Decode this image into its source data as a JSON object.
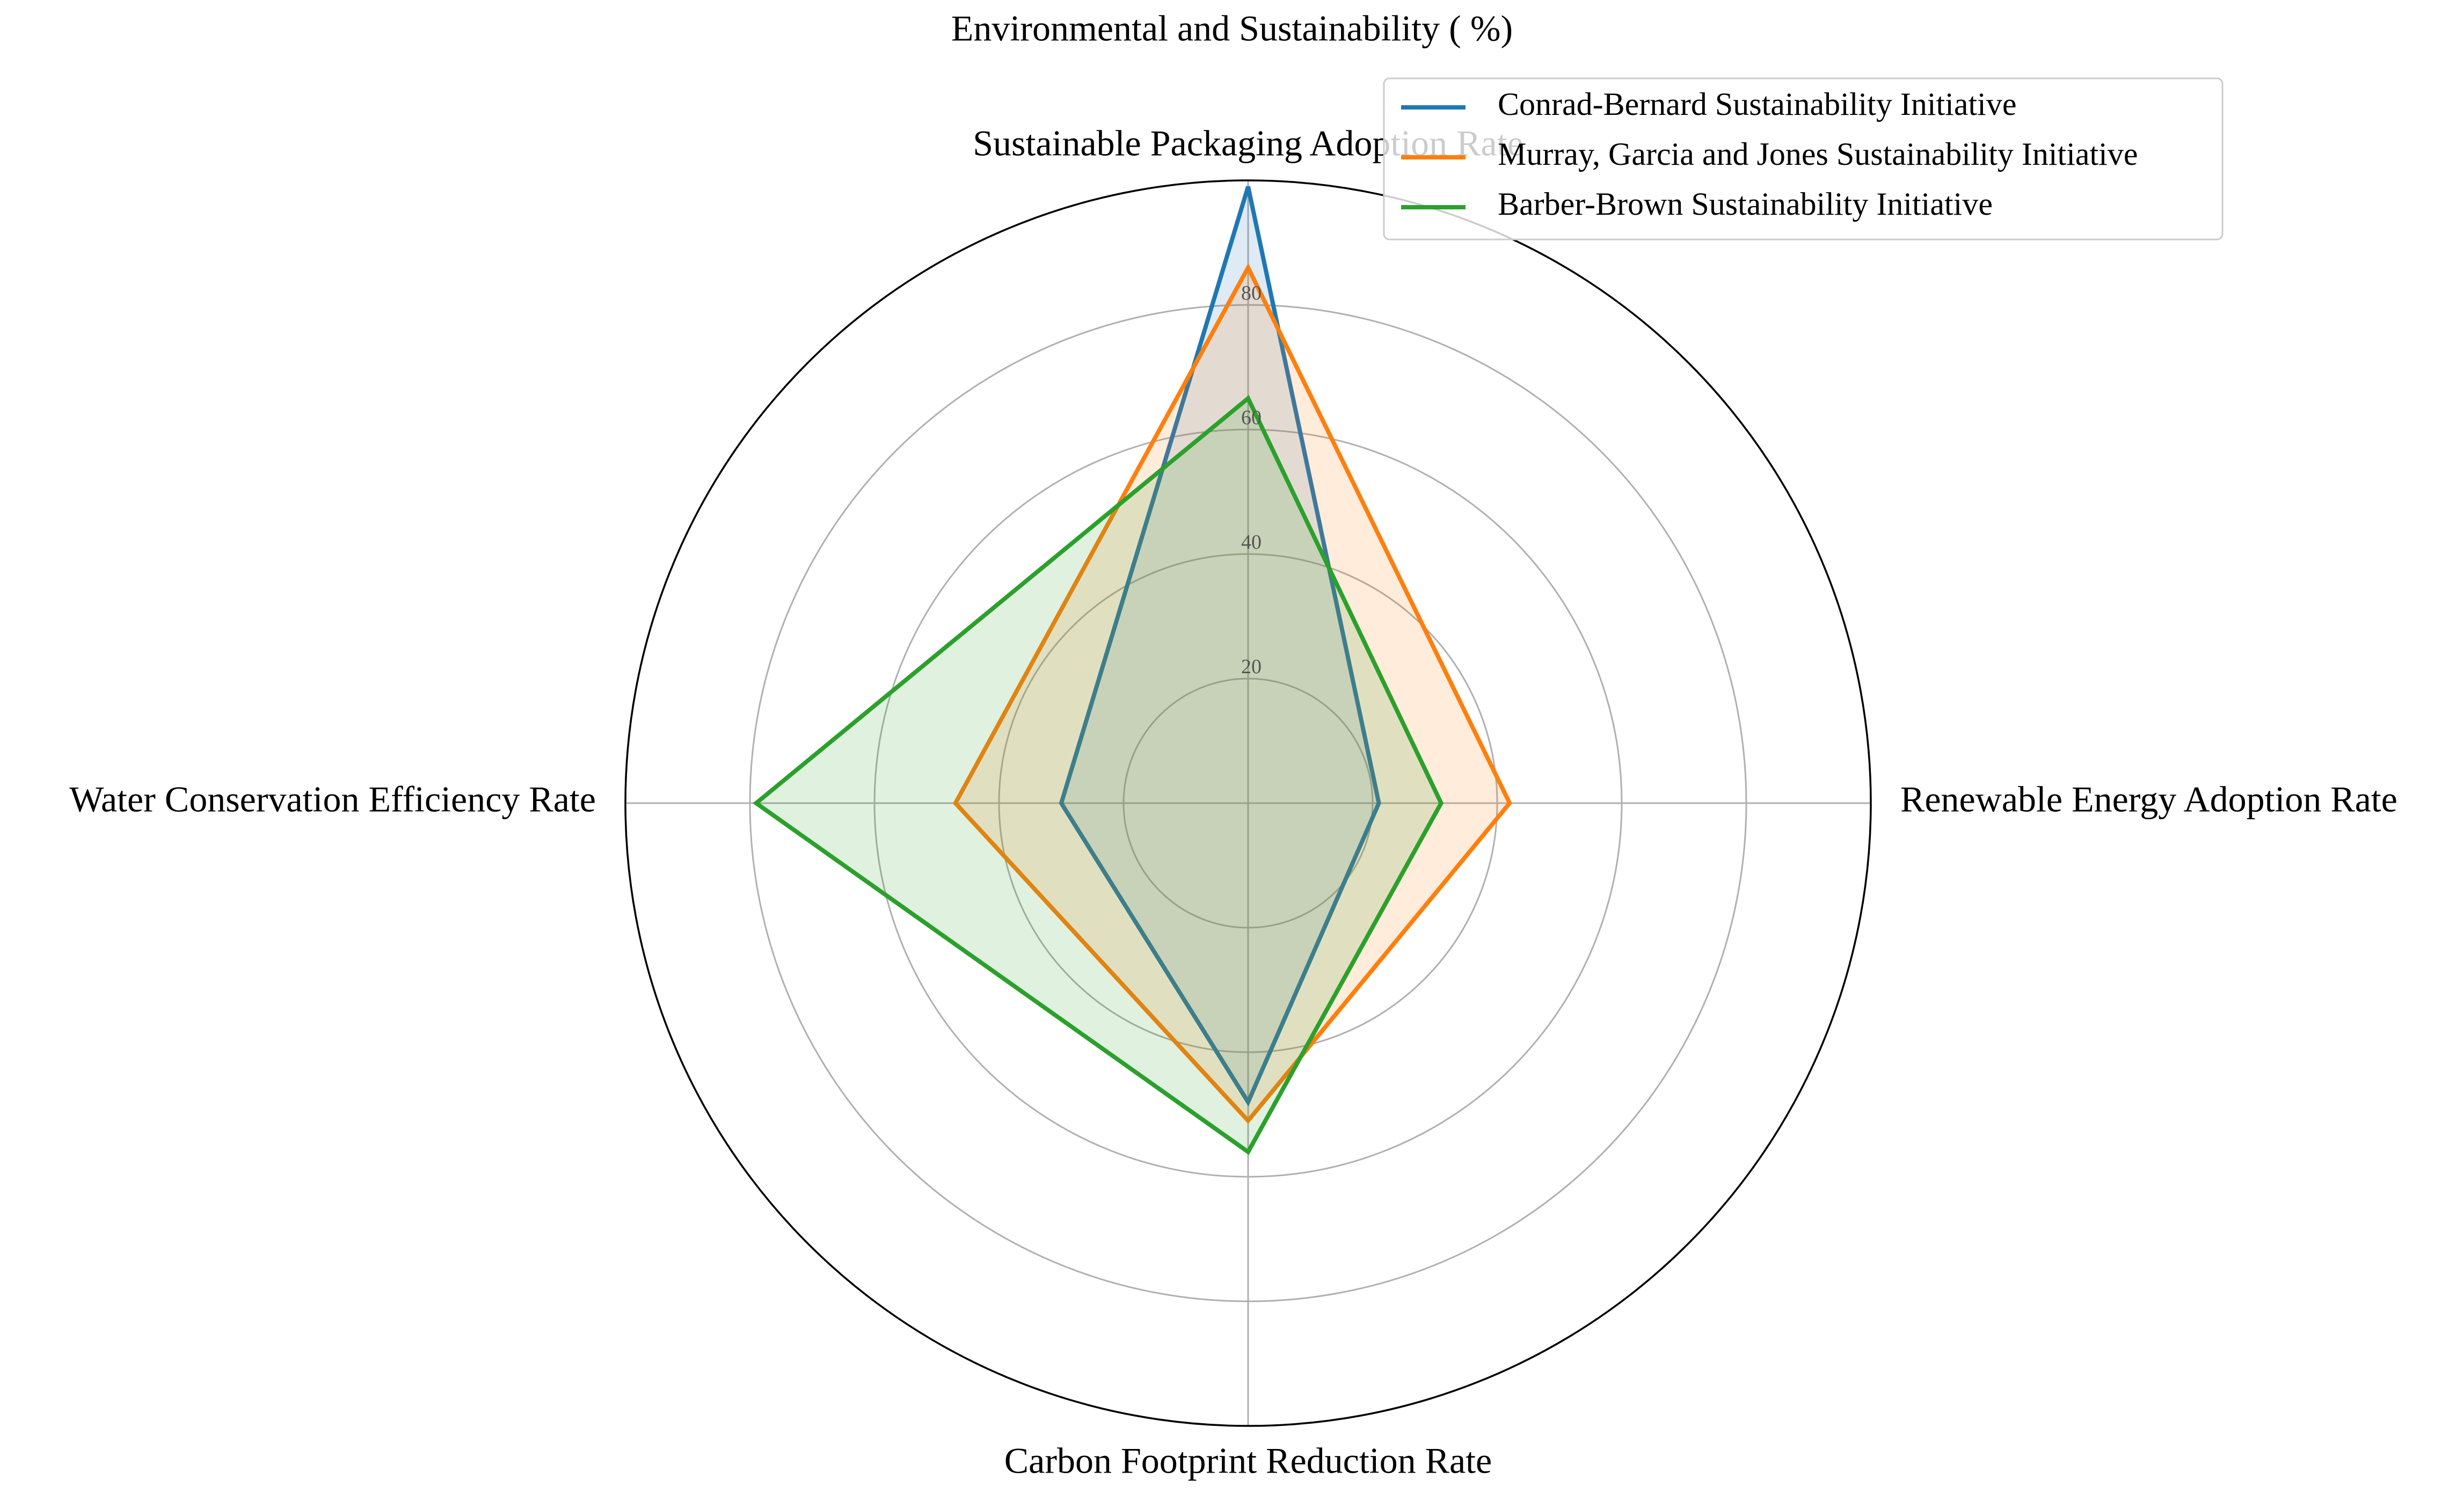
{
  "chart_data": {
    "type": "radar",
    "title": "Environmental and Sustainability ( %)",
    "categories": [
      "Sustainable Packaging Adoption Rate",
      "Renewable Energy Adoption Rate",
      "Carbon Footprint Reduction Rate",
      "Water Conservation Efficiency Rate"
    ],
    "radial_ticks": [
      20,
      40,
      60,
      80
    ],
    "rlim": [
      0,
      100
    ],
    "grid": true,
    "legend_position": "top-right",
    "series": [
      {
        "name": "Conrad-Bernard Sustainability Initiative",
        "color": "#1f77b4",
        "values": [
          99,
          21,
          48,
          30
        ]
      },
      {
        "name": "Murray, Garcia and Jones Sustainability Initiative",
        "color": "#ff7f0e",
        "values": [
          86,
          42,
          51,
          47
        ]
      },
      {
        "name": "Barber-Brown Sustainability Initiative",
        "color": "#2ca02c",
        "values": [
          65,
          31,
          56,
          79
        ]
      }
    ]
  }
}
